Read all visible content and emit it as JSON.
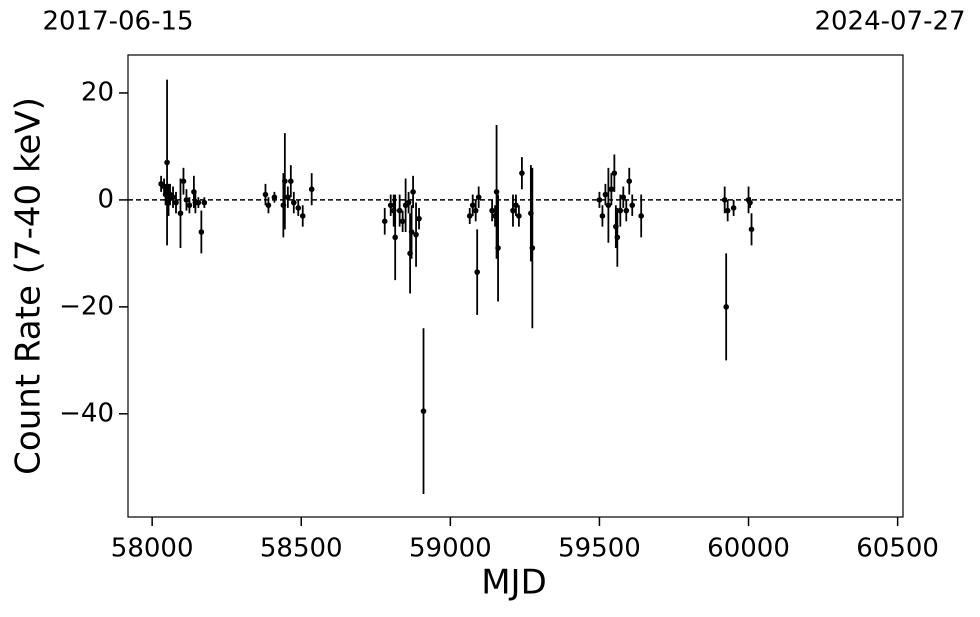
{
  "chart_data": {
    "type": "errorbar",
    "xlabel": "MJD",
    "ylabel": "Count Rate (7-40 keV)",
    "date_labels": [
      "2017-06-15",
      "2024-07-27"
    ],
    "color": "#000000",
    "hline": 0,
    "xlim": [
      57919,
      60518
    ],
    "ylim": [
      -59.3,
      27.1
    ],
    "xticks": [
      58000,
      58500,
      59000,
      59500,
      60000,
      60500
    ],
    "yticks": [
      {
        "value": -40,
        "label": "−40"
      },
      {
        "value": -20,
        "label": "−20"
      },
      0,
      20
    ],
    "x": [
      58030,
      58040,
      58045,
      58050,
      58055,
      58060,
      58070,
      58080,
      58095,
      58105,
      58115,
      58125,
      58140,
      58145,
      58155,
      58165,
      58175,
      58380,
      58390,
      58410,
      58440,
      58445,
      58455,
      58465,
      58475,
      58490,
      58505,
      58535,
      58780,
      58800,
      58810,
      58815,
      58830,
      58840,
      58850,
      58860,
      58865,
      58870,
      58875,
      58885,
      58895,
      58910,
      59065,
      59075,
      59085,
      59090,
      59095,
      59140,
      59150,
      59155,
      59160,
      59210,
      59220,
      59230,
      59240,
      59270,
      59275,
      59500,
      59510,
      59520,
      59530,
      59540,
      59550,
      59555,
      59560,
      59570,
      59580,
      59590,
      59600,
      59610,
      59640,
      59920,
      59925,
      59930,
      59950,
      60000,
      60005,
      60010
    ],
    "values": [
      3,
      2.5,
      1,
      7,
      0,
      1,
      0.5,
      -0.5,
      -2.5,
      3.5,
      0,
      -1,
      1.5,
      -0.5,
      -0.5,
      -6,
      -0.5,
      1,
      -1,
      0.5,
      -1,
      3.5,
      0.5,
      3.5,
      -0.5,
      -1.5,
      -3,
      2,
      -4,
      -1,
      -2,
      -7,
      -2,
      -4,
      -1,
      -0.5,
      -10,
      -6,
      1.5,
      -6.5,
      -3.5,
      -39.5,
      -3,
      -1,
      -2,
      -13.5,
      0.5,
      -2,
      -3,
      1.5,
      -9,
      -2,
      -1,
      -3,
      5,
      -2.5,
      -9,
      0,
      -3,
      1,
      -1,
      2,
      5,
      -5,
      -7,
      -2,
      0.5,
      -2,
      3.5,
      -1,
      -3,
      0,
      -20,
      -2,
      -1.5,
      0,
      -0.5,
      -5.5
    ],
    "errors": [
      1.5,
      1.5,
      2,
      15.5,
      3,
      2,
      2,
      2,
      6.5,
      2.5,
      2,
      1.5,
      3,
      2,
      1,
      4,
      1,
      2,
      1.5,
      1,
      6,
      9,
      2,
      3,
      2,
      1.5,
      2,
      3,
      2.5,
      2,
      3,
      8,
      3,
      2,
      5,
      2,
      7.5,
      5,
      3,
      6,
      2,
      15.5,
      1.5,
      2,
      2,
      8,
      2,
      2,
      2,
      12.5,
      10,
      3,
      2,
      2,
      3,
      9,
      15,
      1.5,
      2,
      2,
      7,
      3,
      3.5,
      4,
      5.5,
      3,
      2,
      2,
      2.5,
      2,
      4,
      2.5,
      10,
      2,
      1.5,
      2.5,
      1,
      3
    ]
  }
}
